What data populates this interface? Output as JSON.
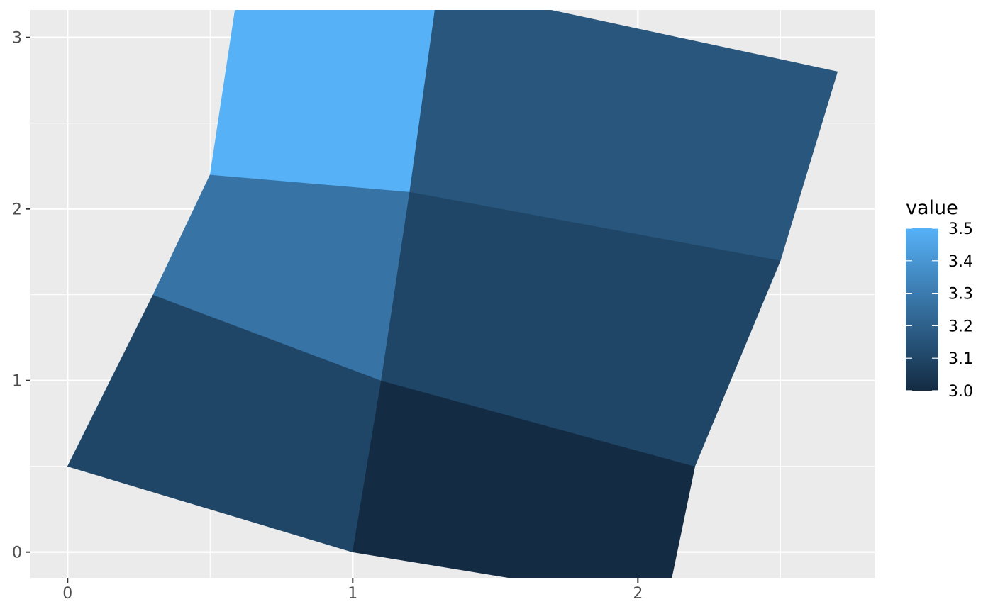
{
  "chart_data": {
    "type": "polygon",
    "title": "",
    "xlabel": "",
    "ylabel": "",
    "xlim": [
      -0.13,
      2.83
    ],
    "ylim": [
      -0.15,
      3.16
    ],
    "x_ticks": [
      0,
      1,
      2
    ],
    "y_ticks": [
      0,
      1,
      2,
      3
    ],
    "x_tick_labels": [
      "0",
      "1",
      "2"
    ],
    "y_tick_labels": [
      "0",
      "1",
      "2",
      "3"
    ],
    "x_minor_gridlines": [
      0.5,
      1.5,
      2.5
    ],
    "y_minor_gridlines": [
      0.5,
      1.5,
      2.5
    ],
    "grid": true,
    "panel_background": "#EBEBEB",
    "gridline_color": "#FFFFFF",
    "legend": {
      "title": "value",
      "position": "right",
      "type": "colorbar",
      "low_color": "#132B43",
      "high_color": "#56B1F7",
      "range": [
        3.0,
        3.5
      ],
      "breaks": [
        3.0,
        3.1,
        3.2,
        3.3,
        3.4,
        3.5
      ],
      "break_labels": [
        "3.0",
        "3.1",
        "3.2",
        "3.3",
        "3.4",
        "3.5"
      ]
    },
    "polygons": [
      {
        "value": 3.1,
        "points": [
          [
            0,
            0.5
          ],
          [
            1,
            0
          ],
          [
            1.1,
            1
          ],
          [
            0.3,
            1.5
          ]
        ]
      },
      {
        "value": 3.0,
        "points": [
          [
            1,
            0
          ],
          [
            2.1,
            -0.3
          ],
          [
            2.2,
            0.5
          ],
          [
            1.1,
            1
          ]
        ]
      },
      {
        "value": 3.27,
        "points": [
          [
            0.3,
            1.5
          ],
          [
            1.1,
            1
          ],
          [
            1.2,
            2.1
          ],
          [
            0.5,
            2.2
          ]
        ]
      },
      {
        "value": 3.1,
        "points": [
          [
            1.1,
            1
          ],
          [
            2.2,
            0.5
          ],
          [
            2.5,
            1.7
          ],
          [
            1.2,
            2.1
          ]
        ]
      },
      {
        "value": 3.5,
        "points": [
          [
            0.5,
            2.2
          ],
          [
            1.2,
            2.1
          ],
          [
            1.3,
            3.3
          ],
          [
            0.6,
            3.3
          ]
        ]
      },
      {
        "value": 3.16,
        "points": [
          [
            1.2,
            2.1
          ],
          [
            2.5,
            1.7
          ],
          [
            2.7,
            2.8
          ],
          [
            1.3,
            3.3
          ]
        ]
      }
    ]
  }
}
